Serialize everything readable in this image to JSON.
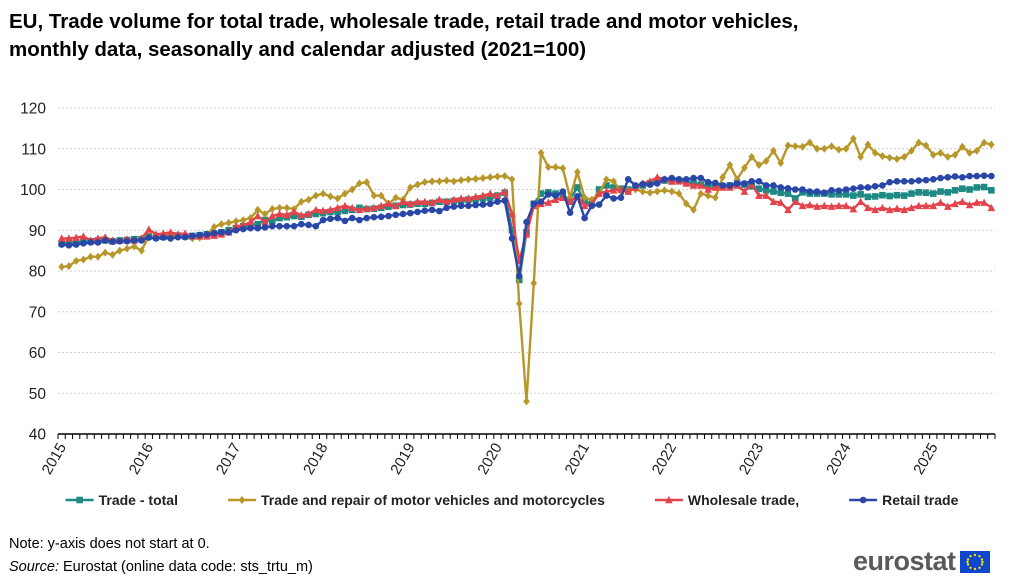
{
  "title": "EU, Trade volume for total trade, wholesale trade, retail trade and motor vehicles, monthly data, seasonally and calendar adjusted (2021=100)",
  "note": "Note: y-axis does not start at 0.",
  "source_label": "Source:",
  "source_text": " Eurostat (online data code: sts_trtu_m)",
  "logo_text": "eurostat",
  "chart_data": {
    "type": "line",
    "title": "EU, Trade volume for total trade, wholesale trade, retail trade and motor vehicles, monthly data, seasonally and calendar adjusted (2021=100)",
    "x_start": "2015-01",
    "x_end": "2025-09",
    "x_frequency": "monthly",
    "x_tick_labels": [
      "2015",
      "2016",
      "2017",
      "2018",
      "2019",
      "2020",
      "2021",
      "2022",
      "2023",
      "2024",
      "2025"
    ],
    "y_tick_labels": [
      "40",
      "50",
      "60",
      "70",
      "80",
      "90",
      "100",
      "110",
      "120"
    ],
    "ylim": [
      40,
      120
    ],
    "grid": true,
    "legend_position": "bottom",
    "series": [
      {
        "name": "Trade - total",
        "color": "#1f8a84",
        "marker": "square",
        "values": [
          86.8,
          87,
          87,
          87.2,
          87.3,
          87.5,
          87.5,
          87.3,
          87.5,
          87.6,
          87.8,
          87.8,
          88.5,
          88.3,
          88.4,
          88.5,
          88.7,
          88.5,
          88.6,
          88.8,
          89,
          89.2,
          89.5,
          90,
          90.5,
          91,
          91.2,
          91.5,
          92.5,
          92.3,
          93,
          93.2,
          93.5,
          93.3,
          93.8,
          94,
          94.2,
          94.5,
          94.5,
          94.8,
          95,
          95.5,
          95.2,
          95.3,
          95.5,
          95.8,
          96,
          96.2,
          96.3,
          96.5,
          96.5,
          96.7,
          97,
          97,
          97.2,
          97.3,
          97.5,
          97.6,
          97.8,
          98,
          98.5,
          99.2,
          90,
          77.8,
          89.5,
          96.5,
          99,
          99.3,
          99,
          98.5,
          97.5,
          100.5,
          97,
          96.5,
          100,
          101,
          100.5,
          100.2,
          100,
          100.5,
          101,
          101.5,
          102,
          102.2,
          102,
          102.2,
          102,
          101.5,
          101.2,
          101,
          101,
          100.8,
          101,
          101.5,
          101.2,
          100.8,
          100.2,
          99.8,
          99.5,
          99.2,
          99,
          97.8,
          99.3,
          99,
          99,
          99,
          98.8,
          98.8,
          98.8,
          98.5,
          98.8,
          98.2,
          98.3,
          98.6,
          98.4,
          98.6,
          98.5,
          99,
          99.3,
          99.2,
          99,
          99.5,
          99.3,
          99.8,
          100.2,
          100,
          100.5,
          100.6,
          99.8
        ]
      },
      {
        "name": "Trade and repair of motor vehicles and motorcycles",
        "color": "#b8972a",
        "marker": "diamond",
        "values": [
          81,
          81.2,
          82.5,
          82.8,
          83.5,
          83.5,
          84.5,
          84,
          85,
          85.5,
          86,
          85,
          88.5,
          88.5,
          88.8,
          89,
          88.5,
          88.5,
          88,
          88.2,
          89,
          90.8,
          91.5,
          91.8,
          92.2,
          92.5,
          93,
          95,
          94,
          95.2,
          95.5,
          95.5,
          95.2,
          97,
          97.5,
          98.5,
          99,
          98.3,
          97.8,
          99,
          100,
          101.5,
          101.8,
          98.5,
          98.5,
          96.5,
          98,
          97.5,
          100.5,
          101.2,
          101.8,
          102,
          102,
          102.2,
          102,
          102.3,
          102.5,
          102.6,
          102.8,
          103,
          103.2,
          103.3,
          102.5,
          72,
          48,
          77,
          109,
          105.5,
          105.5,
          105.2,
          98,
          104.3,
          98,
          97.5,
          99,
          102.5,
          102,
          99.5,
          99.8,
          100,
          99.5,
          99.2,
          99.5,
          99.8,
          99.5,
          99,
          96.5,
          95,
          99,
          98.5,
          98,
          103,
          106,
          102.5,
          105.3,
          108,
          106,
          107,
          109.5,
          106.5,
          110.8,
          110.6,
          110.5,
          111.5,
          110,
          110,
          110.6,
          109.8,
          110,
          112.5,
          108,
          111,
          109,
          108.2,
          107.8,
          107.5,
          108,
          109.5,
          111.5,
          110.8,
          108.5,
          109,
          108,
          108.5,
          110.5,
          109,
          109.5,
          111.5,
          111
        ]
      },
      {
        "name": "Wholesale trade,",
        "color": "#e3434b",
        "marker": "triangle",
        "values": [
          88,
          88,
          88.2,
          88.5,
          87.5,
          88,
          88.3,
          87.5,
          87.5,
          87.8,
          87.5,
          88,
          90.2,
          89,
          89.2,
          89.5,
          89,
          89.2,
          88.5,
          88.5,
          88.5,
          88.7,
          89,
          89.5,
          91,
          91.2,
          92,
          93.5,
          92,
          93.5,
          94,
          93.8,
          94.5,
          93.7,
          94,
          95,
          94.8,
          95,
          95.5,
          96,
          95.5,
          95,
          95.3,
          95.5,
          96,
          96.5,
          96,
          97,
          96.5,
          97,
          97,
          96.8,
          97.5,
          97,
          97.5,
          97.8,
          97.8,
          98.2,
          98.5,
          99,
          98.5,
          99.5,
          94,
          82.5,
          89,
          96,
          96.5,
          96.8,
          97.5,
          98,
          97,
          98.3,
          96,
          96.5,
          99,
          99.5,
          99.8,
          100,
          99.5,
          100.5,
          101.5,
          102,
          103,
          102.5,
          102,
          102,
          101.5,
          101,
          101,
          100,
          100.5,
          100.5,
          100.5,
          101,
          99.5,
          101.2,
          98.5,
          98.5,
          97,
          96.8,
          95,
          97,
          96,
          96.2,
          95.8,
          96,
          95.8,
          96,
          96,
          95.2,
          97,
          95.5,
          95,
          95.5,
          95,
          95.3,
          95,
          95.5,
          96,
          96,
          96,
          96.8,
          95.8,
          96.5,
          97,
          96.2,
          96.8,
          96.8,
          95.5
        ]
      },
      {
        "name": "Retail trade",
        "color": "#2a47a8",
        "marker": "circle",
        "values": [
          86.5,
          86.3,
          86.5,
          86.8,
          87,
          87,
          87.5,
          87.2,
          87.3,
          87.3,
          87.5,
          87.5,
          88.2,
          88,
          88.2,
          88,
          88.3,
          88.3,
          88.6,
          88.8,
          89,
          89.3,
          89.5,
          89.5,
          90,
          90.3,
          90.5,
          90.5,
          90.7,
          91,
          91,
          91,
          91,
          91.5,
          91.3,
          91,
          92.5,
          92.8,
          93,
          92.3,
          93,
          92.5,
          93,
          93.2,
          93.3,
          93.5,
          93.8,
          94,
          94.2,
          94.5,
          94.8,
          95,
          94.7,
          95.5,
          95.8,
          96,
          96,
          96.2,
          96.3,
          96.5,
          97,
          97.3,
          88,
          78.8,
          92,
          96.5,
          97,
          98.8,
          98.5,
          99.5,
          94.3,
          98.3,
          93,
          96,
          96.3,
          98.5,
          97.8,
          98,
          102.5,
          101,
          101.3,
          101.2,
          101.5,
          102.5,
          102.8,
          102.5,
          102.5,
          102.8,
          102.8,
          101.8,
          101.6,
          101,
          101,
          101.5,
          101.5,
          102,
          102,
          101,
          101,
          100.5,
          100.3,
          100,
          100,
          99.5,
          99.5,
          99.2,
          99.8,
          99.7,
          100,
          100.2,
          100.5,
          100.5,
          100.8,
          101,
          101.8,
          102,
          102,
          102,
          102.2,
          102.3,
          102.5,
          102.8,
          103,
          103.2,
          103,
          103.3,
          103.3,
          103.4,
          103.3
        ]
      }
    ]
  }
}
